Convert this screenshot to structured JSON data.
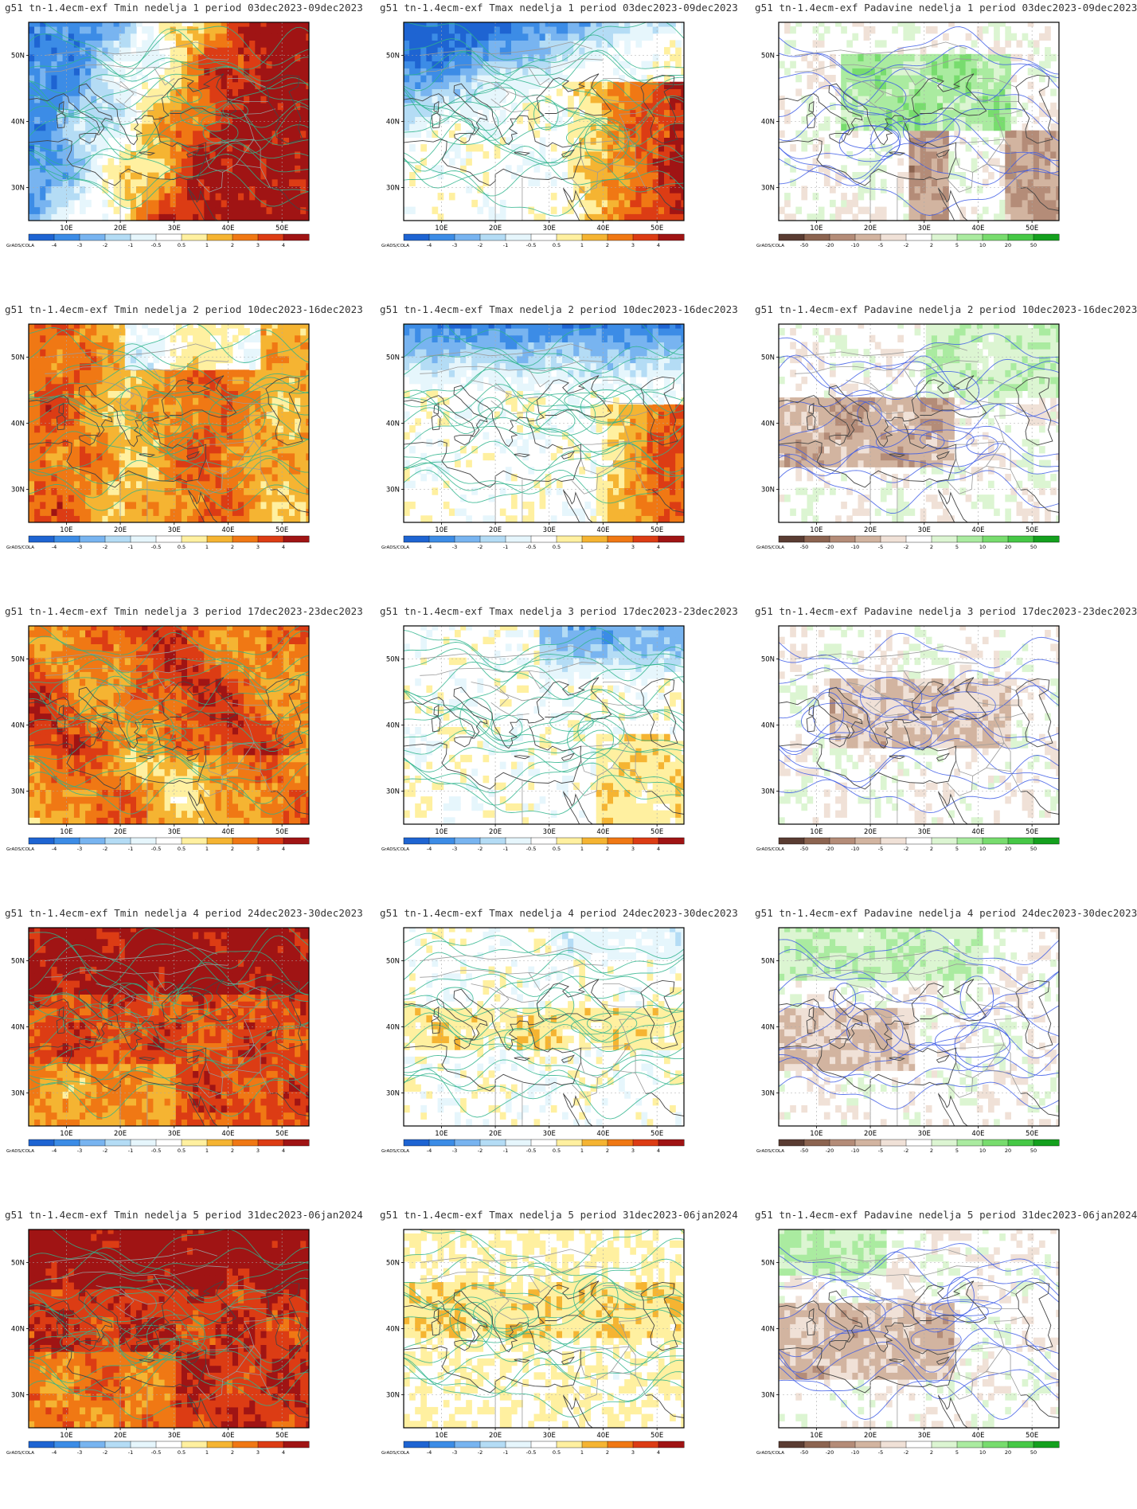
{
  "credit": "GrADS/COLA",
  "lon_labels": [
    "10E",
    "20E",
    "30E",
    "40E",
    "50E"
  ],
  "lat_labels": [
    "50N",
    "40N",
    "30N"
  ],
  "legends": {
    "temperature": {
      "ticks": [
        "-4",
        "-3",
        "-2",
        "-1",
        "-0.5",
        "0.5",
        "1",
        "2",
        "3",
        "4"
      ],
      "colors": [
        "#1e64d2",
        "#3c8ce6",
        "#78b4f0",
        "#b4dcf5",
        "#e6f6fc",
        "#ffffff",
        "#fff0a0",
        "#f5b432",
        "#f07814",
        "#dc3c14",
        "#a01414"
      ]
    },
    "precipitation": {
      "ticks": [
        "-50",
        "-20",
        "-10",
        "-5",
        "-2",
        "2",
        "5",
        "10",
        "20",
        "50"
      ],
      "colors": [
        "#5a3c32",
        "#8c6450",
        "#b48c78",
        "#d2b4a0",
        "#f0e1d7",
        "#ffffff",
        "#dcf5d2",
        "#aaeba0",
        "#78dc6e",
        "#46c846",
        "#14a01e"
      ]
    }
  },
  "panels": [
    {
      "title": "g51 tn-1.4ecm-exf Tmin nedelja 1 period 03dec2023-09dec2023",
      "kind": "tmin",
      "week": 1
    },
    {
      "title": "g51 tn-1.4ecm-exf Tmax nedelja 1 period 03dec2023-09dec2023",
      "kind": "tmax",
      "week": 1
    },
    {
      "title": "g51 tn-1.4ecm-exf Padavine nedelja 1 period 03dec2023-09dec2023",
      "kind": "prec",
      "week": 1
    },
    {
      "title": "g51 tn-1.4ecm-exf Tmin nedelja 2 period 10dec2023-16dec2023",
      "kind": "tmin",
      "week": 2
    },
    {
      "title": "g51 tn-1.4ecm-exf Tmax nedelja 2 period 10dec2023-16dec2023",
      "kind": "tmax",
      "week": 2
    },
    {
      "title": "g51 tn-1.4ecm-exf Padavine nedelja 2 period 10dec2023-16dec2023",
      "kind": "prec",
      "week": 2
    },
    {
      "title": "g51 tn-1.4ecm-exf Tmin nedelja 3 period 17dec2023-23dec2023",
      "kind": "tmin",
      "week": 3
    },
    {
      "title": "g51 tn-1.4ecm-exf Tmax nedelja 3 period 17dec2023-23dec2023",
      "kind": "tmax",
      "week": 3
    },
    {
      "title": "g51 tn-1.4ecm-exf Padavine nedelja 3 period 17dec2023-23dec2023",
      "kind": "prec",
      "week": 3
    },
    {
      "title": "g51 tn-1.4ecm-exf Tmin nedelja 4 period 24dec2023-30dec2023",
      "kind": "tmin",
      "week": 4
    },
    {
      "title": "g51 tn-1.4ecm-exf Tmax nedelja 4 period 24dec2023-30dec2023",
      "kind": "tmax",
      "week": 4
    },
    {
      "title": "g51 tn-1.4ecm-exf Padavine nedelja 4 period 24dec2023-30dec2023",
      "kind": "prec",
      "week": 4
    },
    {
      "title": "g51 tn-1.4ecm-exf Tmin nedelja 5 period 31dec2023-06jan2024",
      "kind": "tmin",
      "week": 5
    },
    {
      "title": "g51 tn-1.4ecm-exf Tmax nedelja 5 period 31dec2023-06jan2024",
      "kind": "tmax",
      "week": 5
    },
    {
      "title": "g51 tn-1.4ecm-exf Padavine nedelja 5 period 31dec2023-06jan2024",
      "kind": "prec",
      "week": 5
    }
  ]
}
